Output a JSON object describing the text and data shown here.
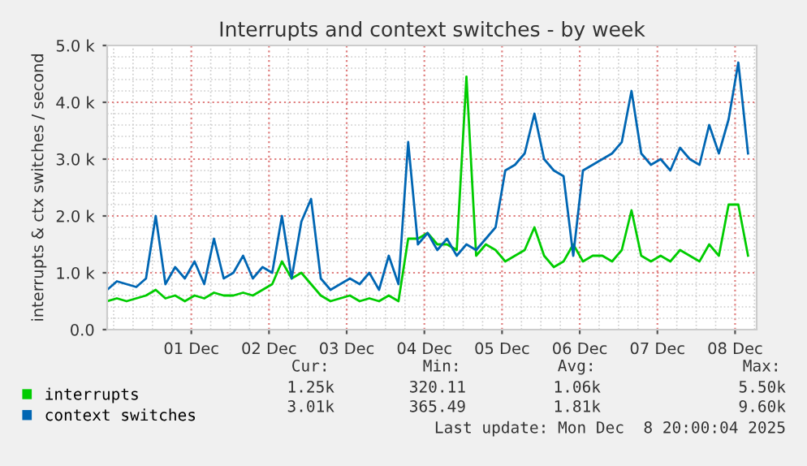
{
  "chart_data": {
    "type": "line",
    "title": "Interrupts and context switches - by week",
    "ylabel": "interrupts & ctx switches / second",
    "x": [
      "2025-11-29T22:00",
      "2025-11-30T01:00",
      "2025-11-30T04:00",
      "2025-11-30T07:00",
      "2025-11-30T10:00",
      "2025-11-30T13:00",
      "2025-11-30T16:00",
      "2025-11-30T19:00",
      "2025-11-30T22:00",
      "2025-12-01T01:00",
      "2025-12-01T04:00",
      "2025-12-01T07:00",
      "2025-12-01T10:00",
      "2025-12-01T13:00",
      "2025-12-01T16:00",
      "2025-12-01T19:00",
      "2025-12-01T22:00",
      "2025-12-02T01:00",
      "2025-12-02T04:00",
      "2025-12-02T07:00",
      "2025-12-02T10:00",
      "2025-12-02T13:00",
      "2025-12-02T16:00",
      "2025-12-02T19:00",
      "2025-12-02T22:00",
      "2025-12-03T01:00",
      "2025-12-03T04:00",
      "2025-12-03T07:00",
      "2025-12-03T10:00",
      "2025-12-03T13:00",
      "2025-12-03T16:00",
      "2025-12-03T19:00",
      "2025-12-03T22:00",
      "2025-12-04T01:00",
      "2025-12-04T04:00",
      "2025-12-04T07:00",
      "2025-12-04T10:00",
      "2025-12-04T13:00",
      "2025-12-04T16:00",
      "2025-12-04T19:00",
      "2025-12-04T22:00",
      "2025-12-05T01:00",
      "2025-12-05T04:00",
      "2025-12-05T07:00",
      "2025-12-05T10:00",
      "2025-12-05T13:00",
      "2025-12-05T16:00",
      "2025-12-05T19:00",
      "2025-12-05T22:00",
      "2025-12-06T01:00",
      "2025-12-06T04:00",
      "2025-12-06T07:00",
      "2025-12-06T10:00",
      "2025-12-06T13:00",
      "2025-12-06T16:00",
      "2025-12-06T19:00",
      "2025-12-06T22:00",
      "2025-12-07T01:00",
      "2025-12-07T04:00",
      "2025-12-07T07:00",
      "2025-12-07T10:00",
      "2025-12-07T13:00",
      "2025-12-07T16:00",
      "2025-12-07T19:00",
      "2025-12-07T22:00",
      "2025-12-08T01:00",
      "2025-12-08T04:00"
    ],
    "series": [
      {
        "name": "interrupts",
        "color": "#00cc00",
        "values": [
          500,
          550,
          500,
          550,
          600,
          700,
          550,
          600,
          500,
          600,
          550,
          650,
          600,
          600,
          650,
          600,
          700,
          800,
          1200,
          900,
          1000,
          800,
          600,
          500,
          550,
          600,
          500,
          550,
          500,
          600,
          500,
          1600,
          1600,
          1700,
          1500,
          1500,
          1400,
          4450,
          1300,
          1500,
          1400,
          1200,
          1300,
          1400,
          1800,
          1300,
          1100,
          1200,
          1500,
          1200,
          1300,
          1300,
          1200,
          1400,
          2100,
          1300,
          1200,
          1300,
          1200,
          1400,
          1300,
          1200,
          1500,
          1300,
          2200,
          2200,
          1300
        ]
      },
      {
        "name": "context switches",
        "color": "#0066b3",
        "values": [
          700,
          850,
          800,
          750,
          900,
          2000,
          800,
          1100,
          900,
          1200,
          800,
          1600,
          900,
          1000,
          1300,
          900,
          1100,
          1000,
          2000,
          900,
          1900,
          2300,
          900,
          700,
          800,
          900,
          800,
          1000,
          700,
          1300,
          800,
          3300,
          1500,
          1700,
          1400,
          1600,
          1300,
          1500,
          1400,
          1600,
          1800,
          2800,
          2900,
          3100,
          3800,
          3000,
          2800,
          2700,
          1300,
          2800,
          2900,
          3000,
          3100,
          3300,
          4200,
          3100,
          2900,
          3000,
          2800,
          3200,
          3000,
          2900,
          3600,
          3100,
          3700,
          4700,
          3100
        ]
      }
    ],
    "xlim": [
      "2025-11-29T22:00",
      "2025-12-08T06:40"
    ],
    "xticks": [
      {
        "value": "2025-12-01T00:00",
        "label": "01 Dec"
      },
      {
        "value": "2025-12-02T00:00",
        "label": "02 Dec"
      },
      {
        "value": "2025-12-03T00:00",
        "label": "03 Dec"
      },
      {
        "value": "2025-12-04T00:00",
        "label": "04 Dec"
      },
      {
        "value": "2025-12-05T00:00",
        "label": "05 Dec"
      },
      {
        "value": "2025-12-06T00:00",
        "label": "06 Dec"
      },
      {
        "value": "2025-12-07T00:00",
        "label": "07 Dec"
      },
      {
        "value": "2025-12-08T00:00",
        "label": "08 Dec"
      }
    ],
    "ylim": [
      0,
      5000
    ],
    "yticks": [
      {
        "value": 0,
        "label": "0.0"
      },
      {
        "value": 1000,
        "label": "1.0 k"
      },
      {
        "value": 2000,
        "label": "2.0 k"
      },
      {
        "value": 3000,
        "label": "3.0 k"
      },
      {
        "value": 4000,
        "label": "4.0 k"
      },
      {
        "value": 5000,
        "label": "5.0 k"
      }
    ],
    "grid": true,
    "legend": "bottom left",
    "marker": "none",
    "line_style": "solid",
    "annotations": [
      "Cur:",
      "Min:",
      "Avg:",
      "Max:",
      "1.25k",
      "320.11",
      "1.06k",
      "5.50k",
      "3.01k",
      "365.49",
      "1.81k",
      "9.60k",
      "Last update: Mon Dec  8 20:00:04 2025"
    ]
  }
}
